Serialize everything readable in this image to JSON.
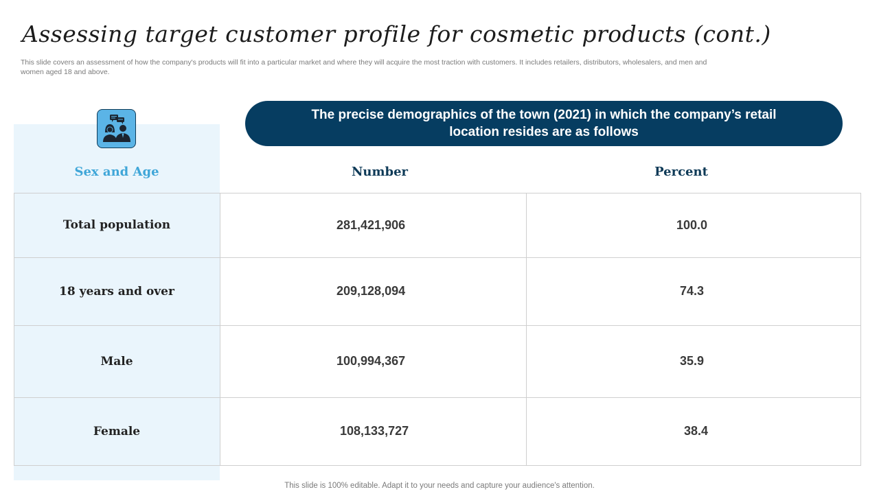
{
  "slide": {
    "title": "Assessing target customer profile for cosmetic products (cont.)",
    "subtitle": "This slide covers an assessment of how the company's products will fit into a particular market and where they will acquire the most traction with customers. It includes retailers, distributors, wholesalers, and men and women aged 18 and above.",
    "footer": "This slide is 100% editable. Adapt it to your needs and capture your audience's attention."
  },
  "icon": "people-conversation-icon",
  "banner": {
    "text": "The precise demographics of the town (2021) in which the company’s retail location resides are as follows"
  },
  "table": {
    "headers": {
      "category": "Sex and Age",
      "number": "Number",
      "percent": "Percent"
    },
    "rows": [
      {
        "label": "Total population",
        "number": "281,421,906",
        "percent": "100.0"
      },
      {
        "label": "18 years and over",
        "number": "209,128,094",
        "percent": "74.3"
      },
      {
        "label": "Male",
        "number": "100,994,367",
        "percent": "35.9"
      },
      {
        "label": "Female",
        "number": "108,133,727",
        "percent": "38.4"
      }
    ]
  },
  "colors": {
    "navy": "#063d61",
    "accent_blue": "#3fa6d8",
    "panel_bg": "#eaf5fc",
    "icon_bg": "#5bb4e6"
  }
}
